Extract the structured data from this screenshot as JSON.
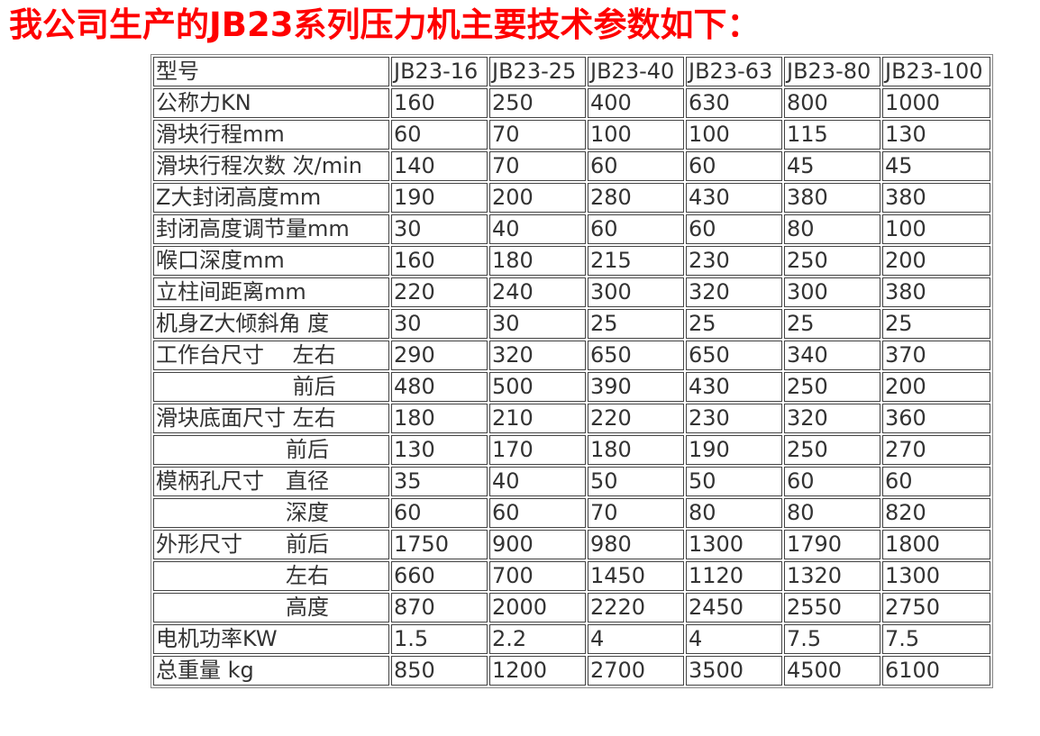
{
  "title": "我公司生产的JB23系列压力机主要技术参数如下：",
  "table": {
    "header": [
      "型号",
      "JB23-16",
      "JB23-25",
      "JB23-40",
      "JB23-63",
      "JB23-80",
      "JB23-100"
    ],
    "rows": [
      [
        "公称力KN",
        "160",
        "250",
        "400",
        "630",
        "800",
        "1000"
      ],
      [
        "滑块行程mm",
        "60",
        "70",
        "100",
        "100",
        "115",
        "130"
      ],
      [
        "滑块行程次数 次/min",
        "140",
        "70",
        "60",
        "60",
        "45",
        "45"
      ],
      [
        " Z大封闭高度mm",
        "190",
        "200",
        "280",
        "430",
        "380",
        "380"
      ],
      [
        "封闭高度调节量mm",
        "30",
        "40",
        "60",
        "60",
        "80",
        "100"
      ],
      [
        "喉口深度mm",
        "160",
        "180",
        "215",
        "230",
        "250",
        "200"
      ],
      [
        "立柱间距离mm",
        "220",
        "240",
        "300",
        "320",
        "300",
        "380"
      ],
      [
        "机身Z大倾斜角 度",
        "30",
        "30",
        "25",
        "25",
        "25",
        "25"
      ],
      [
        "工作台尺寸　 左右",
        "290",
        "320",
        "650",
        "650",
        "340",
        "370"
      ],
      [
        "　　　　　　 前后",
        "480",
        "500",
        "390",
        "430",
        "250",
        "200"
      ],
      [
        "滑块底面尺寸 左右",
        "180",
        "210",
        "220",
        "230",
        "320",
        "360"
      ],
      [
        "　　　　　　前后",
        "130",
        "170",
        "180",
        "190",
        "250",
        "270"
      ],
      [
        "模柄孔尺寸　直径",
        "35",
        "40",
        "50",
        "50",
        "60",
        "60"
      ],
      [
        "　　　　　　深度",
        "60",
        "60",
        "70",
        "80",
        "80",
        "820"
      ],
      [
        "外形尺寸　　前后",
        "1750",
        "900",
        "980",
        "1300",
        "1790",
        "1800"
      ],
      [
        "　　　　　　左右",
        "660",
        "700",
        "1450",
        "1120",
        "1320",
        "1300"
      ],
      [
        "　　　　　　高度",
        "870",
        "2000",
        "2220",
        "2450",
        "2550",
        "2750"
      ],
      [
        "电机功率KW",
        "1.5",
        "2.2",
        "4",
        "4",
        "7.5",
        "7.5"
      ],
      [
        "总重量 kg",
        "850",
        "1200",
        "2700",
        "3500",
        "4500",
        "6100"
      ]
    ]
  }
}
